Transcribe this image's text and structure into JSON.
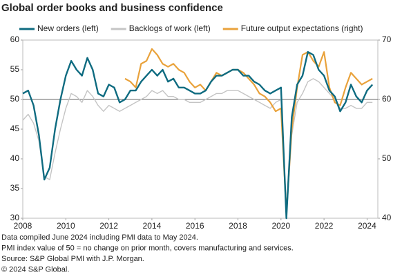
{
  "chart_data": {
    "type": "line",
    "title": "Global order books and business confidence",
    "x": [
      2008,
      2008.25,
      2008.5,
      2008.75,
      2009,
      2009.25,
      2009.5,
      2009.75,
      2010,
      2010.25,
      2010.5,
      2010.75,
      2011,
      2011.25,
      2011.5,
      2011.75,
      2012,
      2012.25,
      2012.5,
      2012.75,
      2013,
      2013.25,
      2013.5,
      2013.75,
      2014,
      2014.25,
      2014.5,
      2014.75,
      2015,
      2015.25,
      2015.5,
      2015.75,
      2016,
      2016.25,
      2016.5,
      2016.75,
      2017,
      2017.25,
      2017.5,
      2017.75,
      2018,
      2018.25,
      2018.5,
      2018.75,
      2019,
      2019.25,
      2019.5,
      2019.75,
      2020,
      2020.25,
      2020.5,
      2020.75,
      2021,
      2021.25,
      2021.5,
      2021.75,
      2022,
      2022.25,
      2022.5,
      2022.75,
      2023,
      2023.25,
      2023.5,
      2023.75,
      2024,
      2024.25
    ],
    "series": [
      {
        "name": "Backlogs of work (left)",
        "color": "#c4c4c4",
        "axis": "y",
        "values": [
          46.5,
          47.5,
          46,
          43,
          37,
          36.5,
          41,
          45,
          48.5,
          51,
          50.5,
          49.5,
          51.5,
          50.5,
          49,
          48,
          49,
          48.5,
          48,
          48.5,
          49,
          49.5,
          50,
          50.5,
          51.5,
          51,
          51.5,
          50.5,
          50.5,
          50,
          50,
          49.5,
          49.5,
          49.5,
          50,
          50.5,
          51,
          51,
          51.5,
          51.5,
          51.5,
          51,
          50.5,
          50,
          49.5,
          49,
          48.5,
          49.5,
          50,
          30,
          44,
          49.5,
          51,
          53,
          53.5,
          53,
          52,
          51,
          50,
          48.5,
          48.5,
          49,
          48.5,
          48.5,
          49.5,
          49.5
        ]
      },
      {
        "name": "Future output expectations (right)",
        "color": "#e9a23b",
        "axis": "y2",
        "values": [
          null,
          null,
          null,
          null,
          null,
          null,
          null,
          null,
          null,
          null,
          null,
          null,
          null,
          null,
          null,
          null,
          null,
          null,
          null,
          63.5,
          63,
          62,
          66,
          66.5,
          68.5,
          67.5,
          66,
          65.5,
          66,
          65,
          64.5,
          63,
          62,
          62.5,
          61.5,
          63,
          64.5,
          64,
          64.5,
          65,
          65,
          64.5,
          63.5,
          62.5,
          61,
          60.5,
          59.5,
          58,
          58.5,
          41,
          55,
          62,
          67.5,
          68,
          66.5,
          65.5,
          68,
          62,
          59.5,
          59,
          62,
          64.5,
          63.5,
          62.5,
          63,
          63.5
        ]
      },
      {
        "name": "New orders (left)",
        "color": "#0e6b80",
        "axis": "y",
        "values": [
          51,
          51.5,
          49,
          44,
          36.5,
          38.5,
          45,
          50,
          54,
          56.5,
          55,
          54,
          57,
          55,
          51,
          50.5,
          52.5,
          52,
          49.5,
          50,
          51.5,
          51.5,
          53,
          54,
          55,
          54,
          55,
          53,
          53.5,
          52,
          52,
          51.5,
          51,
          51,
          51.5,
          53,
          54,
          54,
          54.5,
          55,
          55,
          54,
          54,
          53,
          52.5,
          51.5,
          51,
          51.5,
          52,
          30,
          47,
          52.5,
          54,
          58,
          57.5,
          55,
          54,
          51.5,
          50.5,
          48,
          49.5,
          52.5,
          50.5,
          49.5,
          51.5,
          52.5
        ]
      }
    ],
    "legend_order": [
      "New orders (left)",
      "Backlogs of work (left)",
      "Future output expectations (right)"
    ],
    "xlim": [
      2008,
      2024.5
    ],
    "xticks": [
      2008,
      2010,
      2012,
      2014,
      2016,
      2018,
      2020,
      2022,
      2024
    ],
    "ylim": [
      30,
      60
    ],
    "yticks": [
      30,
      35,
      40,
      45,
      50,
      55,
      60
    ],
    "y2lim": [
      40,
      70
    ],
    "y2ticks": [
      40,
      50,
      60,
      70
    ],
    "reference_line": 50,
    "notes": [
      "Data compiled June 2024 including PMI data to May 2024.",
      "PMI index value of 50 = no change on prior month, covers manufacturing and services.",
      "Source: S&P Global PMI with J.P. Morgan.",
      "© 2024 S&P Global."
    ]
  }
}
